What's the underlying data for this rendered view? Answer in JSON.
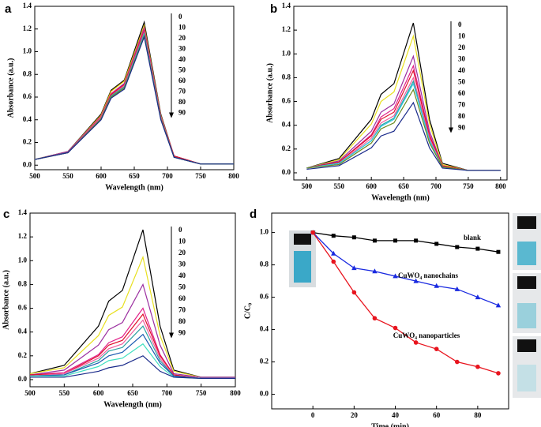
{
  "chart_data": [
    {
      "type": "line",
      "panel": "a",
      "xlabel": "Wavelength (nm)",
      "ylabel": "Absorbance (a.u.)",
      "x": [
        500,
        550,
        600,
        615,
        635,
        665,
        690,
        710,
        750,
        800
      ],
      "xlim": [
        500,
        800
      ],
      "ylim": [
        -0.04,
        1.4
      ],
      "xticks": [
        500,
        550,
        600,
        650,
        700,
        750,
        800
      ],
      "yticks": [
        {
          "value": 0,
          "label": "0.0"
        },
        {
          "value": 0.2,
          "label": "0.2"
        },
        {
          "value": 0.4,
          "label": "0.4"
        },
        {
          "value": 0.6,
          "label": "0.6"
        },
        {
          "value": 0.8,
          "label": "0.8"
        },
        {
          "value": 1,
          "label": "1.0"
        },
        {
          "value": 1.2,
          "label": "1.2"
        },
        {
          "value": 1.4,
          "label": "1.4"
        }
      ],
      "series": [
        {
          "name": "0",
          "color": "#000000",
          "values": [
            0.05,
            0.12,
            0.45,
            0.66,
            0.75,
            1.26,
            0.45,
            0.08,
            0.01,
            0.01
          ]
        },
        {
          "name": "10",
          "color": "#e8c800",
          "values": [
            0.05,
            0.12,
            0.44,
            0.65,
            0.74,
            1.23,
            0.44,
            0.08,
            0.01,
            0.01
          ]
        },
        {
          "name": "20",
          "color": "#9b2fa0",
          "values": [
            0.05,
            0.12,
            0.43,
            0.63,
            0.72,
            1.21,
            0.43,
            0.08,
            0.01,
            0.01
          ]
        },
        {
          "name": "30",
          "color": "#e0208a",
          "values": [
            0.05,
            0.11,
            0.43,
            0.63,
            0.71,
            1.2,
            0.43,
            0.08,
            0.01,
            0.01
          ]
        },
        {
          "name": "40",
          "color": "#e0102a",
          "values": [
            0.05,
            0.11,
            0.42,
            0.62,
            0.71,
            1.18,
            0.42,
            0.08,
            0.01,
            0.01
          ]
        },
        {
          "name": "50",
          "color": "#f060a0",
          "values": [
            0.05,
            0.11,
            0.42,
            0.61,
            0.7,
            1.17,
            0.42,
            0.07,
            0.01,
            0.01
          ]
        },
        {
          "name": "60",
          "color": "#2aa0a0",
          "values": [
            0.05,
            0.11,
            0.41,
            0.61,
            0.69,
            1.16,
            0.41,
            0.07,
            0.01,
            0.01
          ]
        },
        {
          "name": "70",
          "color": "#30c8e0",
          "values": [
            0.05,
            0.11,
            0.41,
            0.6,
            0.68,
            1.15,
            0.41,
            0.07,
            0.01,
            0.01
          ]
        },
        {
          "name": "80",
          "color": "#6a8a20",
          "values": [
            0.05,
            0.11,
            0.41,
            0.6,
            0.68,
            1.14,
            0.41,
            0.07,
            0.01,
            0.01
          ]
        },
        {
          "name": "90",
          "color": "#1a2a8a",
          "values": [
            0.05,
            0.11,
            0.4,
            0.59,
            0.67,
            1.13,
            0.4,
            0.07,
            0.01,
            0.01
          ]
        }
      ]
    },
    {
      "type": "line",
      "panel": "b",
      "xlabel": "Wavelength (nm)",
      "ylabel": "Absorbance (a.u.)",
      "x": [
        500,
        550,
        600,
        615,
        635,
        665,
        690,
        710,
        750,
        800
      ],
      "xlim": [
        480,
        810
      ],
      "ylim": [
        -0.06,
        1.4
      ],
      "xticks": [
        500,
        550,
        600,
        650,
        700,
        750,
        800
      ],
      "yticks": [
        {
          "value": 0,
          "label": "0.0"
        },
        {
          "value": 0.2,
          "label": "0.2"
        },
        {
          "value": 0.4,
          "label": "0.4"
        },
        {
          "value": 0.6,
          "label": "0.6"
        },
        {
          "value": 0.8,
          "label": "0.8"
        },
        {
          "value": 1,
          "label": "1.0"
        },
        {
          "value": 1.2,
          "label": "1.2"
        },
        {
          "value": 1.4,
          "label": "1.4"
        }
      ],
      "series": [
        {
          "name": "0",
          "color": "#000000",
          "values": [
            0.04,
            0.12,
            0.45,
            0.66,
            0.75,
            1.26,
            0.45,
            0.08,
            0.02,
            0.02
          ]
        },
        {
          "name": "10",
          "color": "#e8e020",
          "values": [
            0.04,
            0.11,
            0.41,
            0.6,
            0.68,
            1.15,
            0.41,
            0.07,
            0.02,
            0.02
          ]
        },
        {
          "name": "20",
          "color": "#9b2fa0",
          "values": [
            0.04,
            0.1,
            0.35,
            0.51,
            0.58,
            0.98,
            0.35,
            0.06,
            0.02,
            0.02
          ]
        },
        {
          "name": "30",
          "color": "#e0208a",
          "values": [
            0.04,
            0.09,
            0.32,
            0.47,
            0.54,
            0.9,
            0.32,
            0.06,
            0.02,
            0.02
          ]
        },
        {
          "name": "40",
          "color": "#e0102a",
          "values": [
            0.04,
            0.09,
            0.31,
            0.45,
            0.51,
            0.86,
            0.31,
            0.06,
            0.02,
            0.02
          ]
        },
        {
          "name": "50",
          "color": "#f060a0",
          "values": [
            0.04,
            0.08,
            0.29,
            0.42,
            0.48,
            0.8,
            0.29,
            0.05,
            0.02,
            0.02
          ]
        },
        {
          "name": "60",
          "color": "#2aa0a0",
          "values": [
            0.04,
            0.08,
            0.27,
            0.4,
            0.46,
            0.77,
            0.27,
            0.05,
            0.02,
            0.02
          ]
        },
        {
          "name": "70",
          "color": "#30c8e0",
          "values": [
            0.04,
            0.08,
            0.27,
            0.39,
            0.45,
            0.75,
            0.27,
            0.05,
            0.02,
            0.02
          ]
        },
        {
          "name": "80",
          "color": "#6a8a20",
          "values": [
            0.04,
            0.07,
            0.25,
            0.37,
            0.42,
            0.7,
            0.25,
            0.05,
            0.02,
            0.02
          ]
        },
        {
          "name": "90",
          "color": "#1a2a8a",
          "values": [
            0.03,
            0.06,
            0.21,
            0.31,
            0.35,
            0.59,
            0.21,
            0.04,
            0.02,
            0.02
          ]
        }
      ]
    },
    {
      "type": "line",
      "panel": "c",
      "xlabel": "Wavelength (nm)",
      "ylabel": "Absorbance (a.u.)",
      "x": [
        500,
        550,
        600,
        615,
        635,
        665,
        690,
        710,
        750,
        800
      ],
      "xlim": [
        500,
        800
      ],
      "ylim": [
        -0.06,
        1.4
      ],
      "xticks": [
        500,
        550,
        600,
        650,
        700,
        750,
        800
      ],
      "yticks": [
        {
          "value": 0,
          "label": "0.0"
        },
        {
          "value": 0.2,
          "label": "0.2"
        },
        {
          "value": 0.4,
          "label": "0.4"
        },
        {
          "value": 0.6,
          "label": "0.6"
        },
        {
          "value": 0.8,
          "label": "0.8"
        },
        {
          "value": 1,
          "label": "1.0"
        },
        {
          "value": 1.2,
          "label": "1.2"
        },
        {
          "value": 1.4,
          "label": "1.4"
        }
      ],
      "series": [
        {
          "name": "0",
          "color": "#000000",
          "values": [
            0.05,
            0.12,
            0.45,
            0.66,
            0.75,
            1.26,
            0.45,
            0.08,
            0.02,
            0.02
          ]
        },
        {
          "name": "10",
          "color": "#e8e020",
          "values": [
            0.05,
            0.1,
            0.37,
            0.54,
            0.61,
            1.03,
            0.37,
            0.07,
            0.02,
            0.02
          ]
        },
        {
          "name": "20",
          "color": "#9b2fa0",
          "values": [
            0.04,
            0.08,
            0.29,
            0.42,
            0.48,
            0.8,
            0.29,
            0.05,
            0.02,
            0.02
          ]
        },
        {
          "name": "30",
          "color": "#e0208a",
          "values": [
            0.04,
            0.06,
            0.21,
            0.31,
            0.36,
            0.6,
            0.21,
            0.04,
            0.01,
            0.01
          ]
        },
        {
          "name": "40",
          "color": "#e0102a",
          "values": [
            0.04,
            0.05,
            0.2,
            0.29,
            0.33,
            0.55,
            0.2,
            0.04,
            0.01,
            0.01
          ]
        },
        {
          "name": "50",
          "color": "#f060a0",
          "values": [
            0.03,
            0.05,
            0.18,
            0.26,
            0.3,
            0.5,
            0.18,
            0.03,
            0.01,
            0.01
          ]
        },
        {
          "name": "60",
          "color": "#2aa0a0",
          "values": [
            0.03,
            0.04,
            0.16,
            0.24,
            0.27,
            0.45,
            0.16,
            0.03,
            0.01,
            0.01
          ]
        },
        {
          "name": "70",
          "color": "#1a5ab0",
          "values": [
            0.03,
            0.04,
            0.14,
            0.2,
            0.23,
            0.38,
            0.14,
            0.03,
            0.01,
            0.01
          ]
        },
        {
          "name": "80",
          "color": "#40e0c0",
          "values": [
            0.03,
            0.03,
            0.11,
            0.16,
            0.18,
            0.3,
            0.11,
            0.02,
            0.01,
            0.01
          ]
        },
        {
          "name": "90",
          "color": "#1a2a8a",
          "values": [
            0.02,
            0.02,
            0.07,
            0.1,
            0.12,
            0.2,
            0.07,
            0.02,
            0.01,
            0.01
          ]
        }
      ]
    },
    {
      "type": "line",
      "panel": "d",
      "xlabel": "Time (min)",
      "ylabel": "C/C₀",
      "x": [
        0,
        10,
        20,
        30,
        40,
        50,
        60,
        70,
        80,
        90
      ],
      "xlim": [
        -20,
        95
      ],
      "ylim": [
        -0.09,
        1.12
      ],
      "xticks": [
        0,
        20,
        40,
        60,
        80
      ],
      "yticks": [
        {
          "value": 0,
          "label": "0.0"
        },
        {
          "value": 0.2,
          "label": "0.2"
        },
        {
          "value": 0.4,
          "label": "0.4"
        },
        {
          "value": 0.6,
          "label": "0.6"
        },
        {
          "value": 0.8,
          "label": "0.8"
        },
        {
          "value": 1,
          "label": "1.0"
        }
      ],
      "series": [
        {
          "name": "blank",
          "color": "#000000",
          "marker": "square",
          "values": [
            1.0,
            0.98,
            0.97,
            0.95,
            0.95,
            0.95,
            0.93,
            0.91,
            0.9,
            0.88
          ]
        },
        {
          "name": "CuWO₄ nanochains",
          "color": "#1a2ae0",
          "marker": "triangle",
          "values": [
            1.0,
            0.87,
            0.78,
            0.76,
            0.73,
            0.7,
            0.67,
            0.65,
            0.6,
            0.55
          ]
        },
        {
          "name": "CuWO₄ nanoparticles",
          "color": "#e8141e",
          "marker": "circle",
          "values": [
            1.0,
            0.82,
            0.63,
            0.47,
            0.41,
            0.32,
            0.28,
            0.2,
            0.17,
            0.13
          ]
        }
      ]
    }
  ]
}
